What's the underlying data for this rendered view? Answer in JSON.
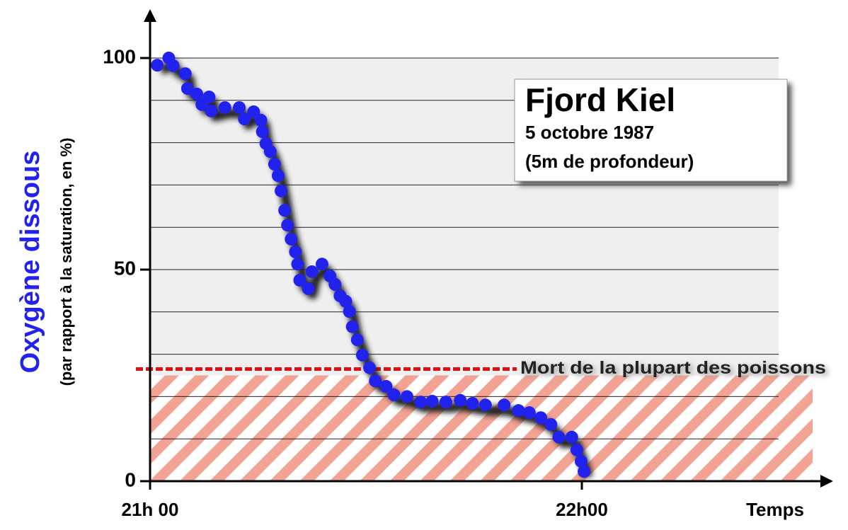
{
  "chart_data": {
    "type": "line",
    "title": "Fjord Kiel",
    "subtitle": [
      "5 octobre 1987",
      "(5m de profondeur)"
    ],
    "y_label": "Oxygène dissous",
    "y_sublabel": "(par rapport à la saturation, en %)",
    "x_label": "Temps",
    "xlim": [
      0,
      93
    ],
    "xticks": [
      {
        "value": 0,
        "label": "21h 00"
      },
      {
        "value": 60,
        "label": "22h00"
      }
    ],
    "ylim": [
      0,
      100
    ],
    "yticks": [
      0,
      50,
      100
    ],
    "minor_yticks": [
      10,
      20,
      30,
      40,
      60,
      70,
      80,
      90
    ],
    "grid": true,
    "threshold": {
      "value": 26.5,
      "label": "Mort de la plupart des poissons",
      "color": "#dd1111"
    },
    "danger_zone": [
      0,
      25
    ],
    "series": [
      {
        "name": "Oxygène dissous",
        "color": "#2222ee",
        "x": [
          1.0,
          2.6,
          3.2,
          4.9,
          5.2,
          6.5,
          7.2,
          8.2,
          8.5,
          10.4,
          12.4,
          13.1,
          14.4,
          15.4,
          15.6,
          16.1,
          16.7,
          17.3,
          17.8,
          18.2,
          18.7,
          19.1,
          19.6,
          20.2,
          20.5,
          20.8,
          22.0,
          22.5,
          23.9,
          25.0,
          25.7,
          26.4,
          27.2,
          27.7,
          28.1,
          28.8,
          29.5,
          30.5,
          31.3,
          32.8,
          33.9,
          35.7,
          37.6,
          39.2,
          41.1,
          43.1,
          44.8,
          46.6,
          49.2,
          51.2,
          52.7,
          54.3,
          55.7,
          56.8,
          58.6,
          59.3,
          59.9,
          60.3
        ],
        "values": [
          98.3,
          100,
          98.2,
          96.3,
          92.8,
          91.5,
          89,
          90.8,
          87.5,
          88.3,
          88.3,
          85.6,
          87.3,
          85.3,
          82.6,
          79.8,
          77.9,
          74.9,
          72.2,
          68.6,
          64,
          60.5,
          57.2,
          54.2,
          51.3,
          47.5,
          45.5,
          49.5,
          51.3,
          48.5,
          46.5,
          43.8,
          42.5,
          40.1,
          36.5,
          33.4,
          29.8,
          26.8,
          23.7,
          22.4,
          20.4,
          20,
          18.7,
          18.9,
          18.7,
          19.1,
          18.4,
          18,
          18,
          16.7,
          16.2,
          15,
          13.4,
          10.4,
          10.4,
          7.4,
          4.7,
          2.3
        ]
      }
    ]
  }
}
